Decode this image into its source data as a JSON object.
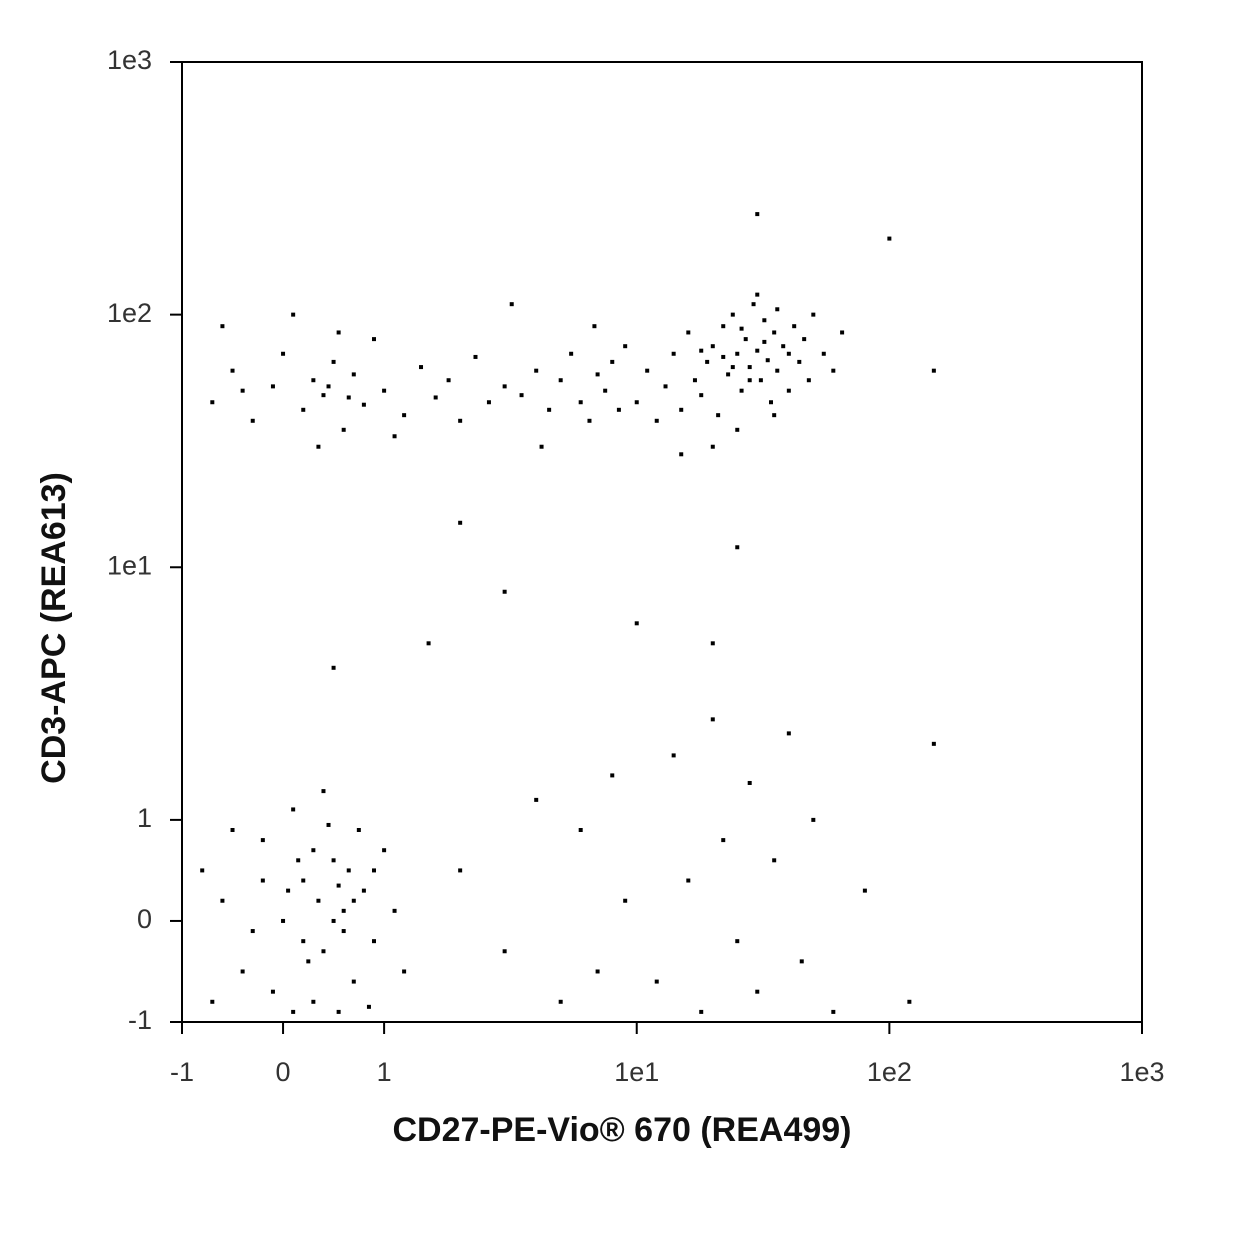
{
  "chart_data": {
    "type": "scatter",
    "x_label": "CD27-PE-Vio® 670 (REA499)",
    "y_label": "CD3-APC (REA613)",
    "scale": "biexponential",
    "color": "#000000",
    "xlim": [
      -1,
      1000
    ],
    "ylim": [
      -1,
      1000
    ],
    "xticks": [
      -1,
      0,
      1,
      {
        "value": 10,
        "label": "1e1"
      },
      {
        "value": 100,
        "label": "1e2"
      },
      {
        "value": 1000,
        "label": "1e3"
      }
    ],
    "yticks": [
      -1,
      0,
      1,
      {
        "value": 10,
        "label": "1e1"
      },
      {
        "value": 100,
        "label": "1e2"
      },
      {
        "value": 1000,
        "label": "1e3"
      }
    ],
    "x": [
      -0.6,
      -0.4,
      -0.2,
      0,
      0.2,
      0.4,
      0.5,
      0.6,
      0.3,
      0.1,
      -0.3,
      0.7,
      0.8,
      0.9,
      1.0,
      -0.7,
      -0.5,
      0.45,
      0.55,
      0.65,
      0.35,
      0.25,
      0.15,
      -0.1,
      0.05,
      0.75,
      0.85,
      1.1,
      1.2,
      -0.8,
      0.4,
      0.6,
      0.5,
      0.3,
      0.2,
      0.7,
      -0.2,
      0.1,
      0.9,
      0.55,
      -0.7,
      -0.5,
      -0.3,
      -0.1,
      0,
      0.2,
      0.3,
      0.4,
      0.5,
      0.6,
      0.7,
      0.8,
      0.9,
      1.0,
      1.2,
      1.4,
      1.6,
      1.8,
      2.0,
      2.3,
      2.6,
      3.0,
      -0.6,
      0.1,
      0.35,
      0.55,
      1.1,
      -0.4,
      0.45,
      0.65,
      3.5,
      4,
      4.5,
      5,
      5.5,
      6,
      6.5,
      7,
      7.5,
      8,
      8.5,
      9,
      4.2,
      6.8,
      3.2,
      10,
      11,
      12,
      13,
      14,
      15,
      16,
      17,
      18,
      19,
      20,
      21,
      22,
      23,
      24,
      25,
      26,
      27,
      28,
      29,
      30,
      31,
      32,
      33,
      34,
      35,
      36,
      38,
      40,
      42,
      44,
      46,
      48,
      50,
      55,
      60,
      65,
      20,
      25,
      30,
      35,
      15,
      28,
      22,
      26,
      32,
      24,
      18,
      36,
      40,
      2,
      3,
      4,
      5,
      6,
      7,
      8,
      9,
      12,
      14,
      16,
      18,
      20,
      22,
      25,
      28,
      30,
      35,
      40,
      45,
      50,
      60,
      80,
      120,
      150,
      1.5,
      3,
      0.5,
      10,
      20,
      2,
      25,
      150,
      100,
      30
    ],
    "values": [
      0.2,
      -0.5,
      0.8,
      0,
      0.4,
      -0.3,
      0.6,
      0.1,
      -0.8,
      1.1,
      -0.1,
      -0.6,
      0.3,
      -0.2,
      0.7,
      -0.8,
      0.9,
      0.95,
      -0.9,
      0.5,
      0.2,
      -0.4,
      0.6,
      -0.7,
      0.3,
      0.9,
      -0.85,
      0.1,
      -0.5,
      0.5,
      1.3,
      -0.1,
      0.0,
      0.7,
      -0.2,
      0.2,
      0.4,
      -0.9,
      0.5,
      0.35,
      45,
      60,
      38,
      52,
      70,
      42,
      55,
      48,
      65,
      35,
      58,
      44,
      80,
      50,
      40,
      62,
      47,
      55,
      38,
      68,
      45,
      52,
      90,
      100,
      30,
      85,
      33,
      50,
      52,
      47,
      48,
      60,
      42,
      55,
      70,
      45,
      38,
      58,
      50,
      65,
      42,
      75,
      30,
      90,
      110,
      45,
      60,
      38,
      52,
      70,
      42,
      85,
      55,
      48,
      65,
      75,
      40,
      90,
      58,
      100,
      70,
      50,
      80,
      62,
      110,
      72,
      55,
      95,
      66,
      45,
      85,
      60,
      75,
      50,
      90,
      65,
      80,
      55,
      100,
      70,
      60,
      85,
      30,
      35,
      120,
      40,
      28,
      55,
      68,
      88,
      78,
      62,
      72,
      105,
      70,
      0.5,
      -0.3,
      1.2,
      -0.8,
      0.9,
      -0.5,
      1.5,
      0.2,
      -0.6,
      1.8,
      0.4,
      -0.9,
      2.5,
      0.8,
      -0.2,
      1.4,
      -0.7,
      0.6,
      2.2,
      -0.4,
      1,
      -0.9,
      0.3,
      -0.8,
      2,
      5,
      8,
      4,
      6,
      5,
      15,
      12,
      60,
      200,
      250
    ]
  }
}
